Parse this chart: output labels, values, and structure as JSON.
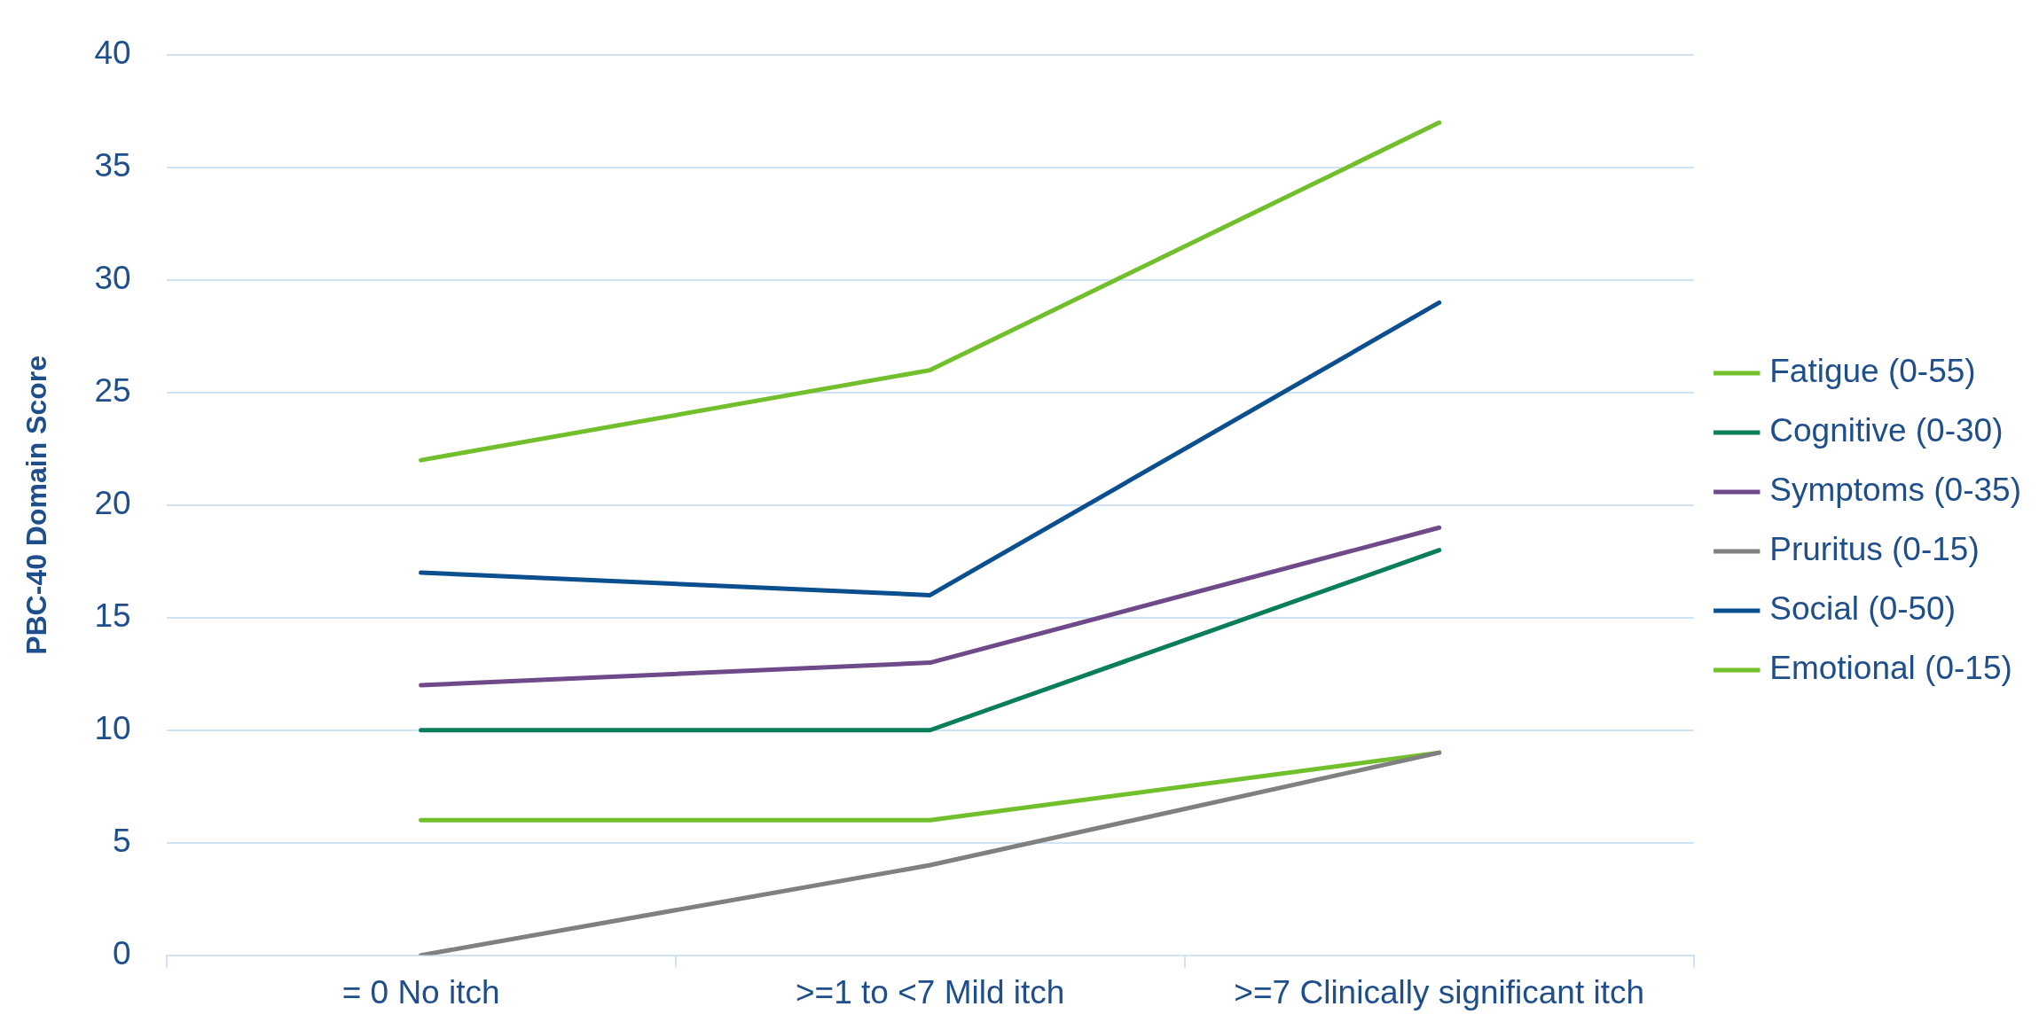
{
  "chart_data": {
    "type": "line",
    "ylabel": "PBC-40 Domain Score",
    "categories": [
      "= 0 No itch",
      ">=1 to <7 Mild itch",
      ">=7 Clinically significant itch"
    ],
    "series": [
      {
        "name": "Fatigue (0-55)",
        "color": "#70bf2b",
        "values": [
          22,
          26,
          37
        ]
      },
      {
        "name": "Cognitive (0-30)",
        "color": "#0a7d5a",
        "values": [
          10,
          10,
          18
        ]
      },
      {
        "name": "Symptoms (0-35)",
        "color": "#6f4a8a",
        "values": [
          12,
          13,
          19
        ]
      },
      {
        "name": "Pruritus (0-15)",
        "color": "#808080",
        "values": [
          0,
          4,
          9
        ]
      },
      {
        "name": "Social (0-50)",
        "color": "#0b4f8f",
        "values": [
          17,
          16,
          29
        ]
      },
      {
        "name": "Emotional (0-15)",
        "color": "#70bf2b",
        "values": [
          6,
          6,
          9
        ]
      }
    ],
    "ylim": [
      0,
      40
    ],
    "yticks": [
      0,
      5,
      10,
      15,
      20,
      25,
      30,
      35,
      40
    ],
    "grid": "y",
    "legend": "right",
    "marker": "none",
    "line_style": "solid"
  }
}
